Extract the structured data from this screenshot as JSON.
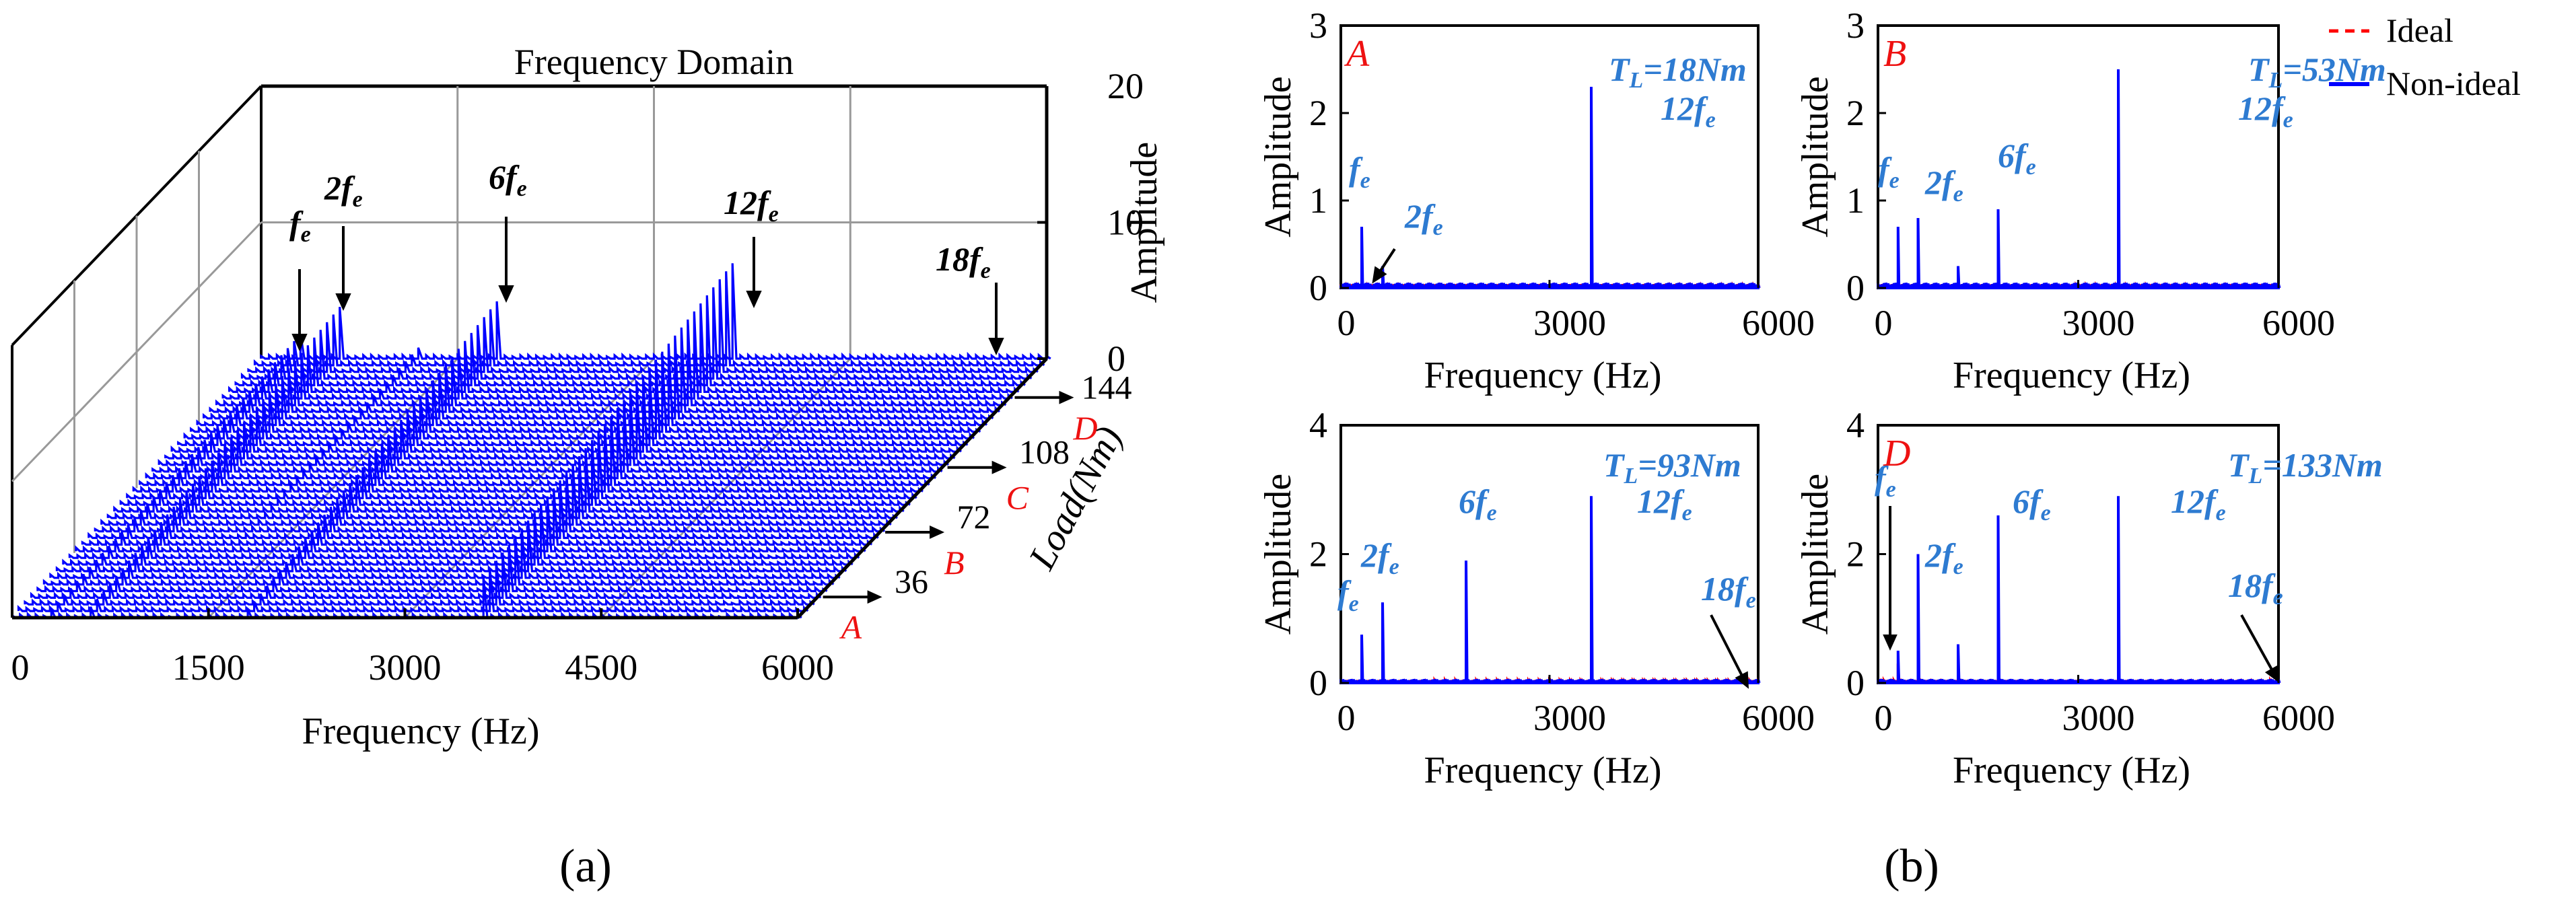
{
  "chart_data": [
    {
      "id": "a",
      "type": "waterfall-3d",
      "title": "Frequency Domain",
      "panel_label": "(a)",
      "xlabel": "Frequency (Hz)",
      "xlim": [
        0,
        6000
      ],
      "xticks": [
        "0",
        "1500",
        "3000",
        "4500",
        "6000"
      ],
      "zlabel": "Amplitude",
      "zlim": [
        0,
        20
      ],
      "zticks": [
        "0",
        "10",
        "20"
      ],
      "ylabel": "Load(Nm)",
      "yticks": [
        "36",
        "72",
        "108",
        "144"
      ],
      "load_markers": [
        "A",
        "B",
        "C",
        "D"
      ],
      "harmonic_labels": [
        {
          "label": "f",
          "sub": "e",
          "freq": 300
        },
        {
          "label": "2f",
          "sub": "e",
          "freq": 600
        },
        {
          "label": "6f",
          "sub": "e",
          "freq": 1800
        },
        {
          "label": "12f",
          "sub": "e",
          "freq": 3600
        },
        {
          "label": "18f",
          "sub": "e",
          "freq": 5400
        }
      ],
      "series_color": "#0000ff",
      "trace_count": 40,
      "peak_frequencies": [
        300,
        600,
        1800,
        3600
      ],
      "peak_amplitude_range": {
        "f": [
          1,
          2
        ],
        "2f": [
          1,
          4
        ],
        "6f": [
          1,
          4
        ],
        "12f": [
          3,
          7
        ]
      }
    },
    {
      "id": "A",
      "type": "line",
      "panel_marker": "A",
      "annotation": {
        "prefix": "T",
        "sub": "L",
        "suffix": "=18Nm"
      },
      "xlabel": "Frequency (Hz)",
      "ylabel": "Amplitude",
      "xlim": [
        0,
        6000
      ],
      "ylim": [
        0,
        3
      ],
      "xticks": [
        "0",
        "3000",
        "6000"
      ],
      "yticks": [
        "0",
        "1",
        "2",
        "3"
      ],
      "harmonic_labels": [
        {
          "label": "f",
          "sub": "e",
          "freq": 300,
          "arrow": false
        },
        {
          "label": "2f",
          "sub": "e",
          "freq": 600,
          "arrow": true
        },
        {
          "label": "12f",
          "sub": "e",
          "freq": 3600,
          "arrow": false
        }
      ],
      "series": [
        {
          "name": "Non-ideal",
          "color": "#0000ff",
          "peaks": [
            [
              300,
              0.7
            ],
            [
              600,
              0.25
            ],
            [
              3600,
              2.3
            ]
          ]
        },
        {
          "name": "Ideal",
          "color": "#ff0000",
          "peaks": [
            [
              3600,
              0.15
            ]
          ]
        }
      ]
    },
    {
      "id": "B",
      "type": "line",
      "panel_marker": "B",
      "annotation": {
        "prefix": "T",
        "sub": "L",
        "suffix": "=53Nm"
      },
      "xlabel": "Frequency (Hz)",
      "ylabel": "Amplitude",
      "xlim": [
        0,
        6000
      ],
      "ylim": [
        0,
        3
      ],
      "xticks": [
        "0",
        "3000",
        "6000"
      ],
      "yticks": [
        "0",
        "1",
        "2",
        "3"
      ],
      "harmonic_labels": [
        {
          "label": "f",
          "sub": "e",
          "freq": 300,
          "arrow": true
        },
        {
          "label": "2f",
          "sub": "e",
          "freq": 600,
          "arrow": false
        },
        {
          "label": "6f",
          "sub": "e",
          "freq": 1800,
          "arrow": false
        },
        {
          "label": "12f",
          "sub": "e",
          "freq": 3600,
          "arrow": false
        }
      ],
      "series": [
        {
          "name": "Non-ideal",
          "color": "#0000ff",
          "peaks": [
            [
              300,
              0.7
            ],
            [
              600,
              0.8
            ],
            [
              1200,
              0.25
            ],
            [
              1800,
              0.9
            ],
            [
              3600,
              2.5
            ]
          ]
        },
        {
          "name": "Ideal",
          "color": "#ff0000",
          "peaks": [
            [
              600,
              0.15
            ]
          ]
        }
      ]
    },
    {
      "id": "C",
      "type": "line",
      "panel_marker": "",
      "annotation": {
        "prefix": "T",
        "sub": "L",
        "suffix": "=93Nm"
      },
      "xlabel": "Frequency (Hz)",
      "ylabel": "Amplitude",
      "xlim": [
        0,
        6000
      ],
      "ylim": [
        0,
        4
      ],
      "xticks": [
        "0",
        "3000",
        "6000"
      ],
      "yticks": [
        "0",
        "2",
        "4"
      ],
      "harmonic_labels": [
        {
          "label": "f",
          "sub": "e",
          "freq": 300,
          "arrow": false
        },
        {
          "label": "2f",
          "sub": "e",
          "freq": 600,
          "arrow": false
        },
        {
          "label": "6f",
          "sub": "e",
          "freq": 1800,
          "arrow": false
        },
        {
          "label": "12f",
          "sub": "e",
          "freq": 3600,
          "arrow": false
        },
        {
          "label": "18f",
          "sub": "e",
          "freq": 5400,
          "arrow": true
        }
      ],
      "series": [
        {
          "name": "Non-ideal",
          "color": "#0000ff",
          "peaks": [
            [
              300,
              0.75
            ],
            [
              600,
              1.25
            ],
            [
              1800,
              1.9
            ],
            [
              3600,
              2.9
            ]
          ]
        },
        {
          "name": "Ideal",
          "color": "#ff0000",
          "peaks": [
            [
              600,
              0.3
            ]
          ]
        }
      ]
    },
    {
      "id": "D",
      "type": "line",
      "panel_marker": "D",
      "annotation": {
        "prefix": "T",
        "sub": "L",
        "suffix": "=133Nm"
      },
      "xlabel": "Frequency (Hz)",
      "ylabel": "Amplitude",
      "xlim": [
        0,
        6000
      ],
      "ylim": [
        0,
        4
      ],
      "xticks": [
        "0",
        "3000",
        "6000"
      ],
      "yticks": [
        "0",
        "2",
        "4"
      ],
      "harmonic_labels": [
        {
          "label": "f",
          "sub": "e",
          "freq": 300,
          "arrow": true
        },
        {
          "label": "2f",
          "sub": "e",
          "freq": 600,
          "arrow": false
        },
        {
          "label": "6f",
          "sub": "e",
          "freq": 1800,
          "arrow": false
        },
        {
          "label": "12f",
          "sub": "e",
          "freq": 3600,
          "arrow": false
        },
        {
          "label": "18f",
          "sub": "e",
          "freq": 5400,
          "arrow": true
        }
      ],
      "series": [
        {
          "name": "Non-ideal",
          "color": "#0000ff",
          "peaks": [
            [
              300,
              0.5
            ],
            [
              600,
              2.0
            ],
            [
              1200,
              0.6
            ],
            [
              1800,
              2.6
            ],
            [
              3600,
              2.9
            ]
          ]
        },
        {
          "name": "Ideal",
          "color": "#ff0000",
          "peaks": [
            [
              600,
              0.45
            ],
            [
              300,
              0.3
            ]
          ]
        }
      ]
    }
  ],
  "legend": {
    "entries": [
      {
        "name": "Ideal",
        "color": "#ff0000",
        "style": "dashed"
      },
      {
        "name": "Non-ideal",
        "color": "#0000ff",
        "style": "solid"
      }
    ]
  },
  "captions": {
    "a": "(a)",
    "b": "(b)"
  }
}
